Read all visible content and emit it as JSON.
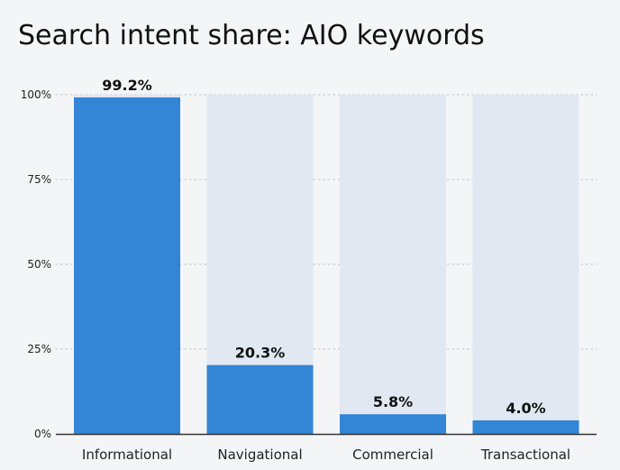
{
  "chart_data": {
    "type": "bar",
    "title": "Search intent share: AIO keywords",
    "categories": [
      "Informational",
      "Navigational",
      "Commercial",
      "Transactional"
    ],
    "values": [
      99.2,
      20.3,
      5.8,
      4.0
    ],
    "data_labels": [
      "99.2%",
      "20.3%",
      "5.8%",
      "4.0%"
    ],
    "ylim": [
      0,
      100
    ],
    "yticks": [
      0,
      25,
      50,
      75,
      100
    ],
    "ytick_labels": [
      "0%",
      "25%",
      "50%",
      "75%",
      "100%"
    ],
    "xlabel": "",
    "ylabel": "",
    "grid": true,
    "legend": "none",
    "colors": {
      "bar": "#3385d6",
      "track": "#e1e8f1",
      "grid": "#c8ccd2",
      "axis": "#333333"
    }
  }
}
